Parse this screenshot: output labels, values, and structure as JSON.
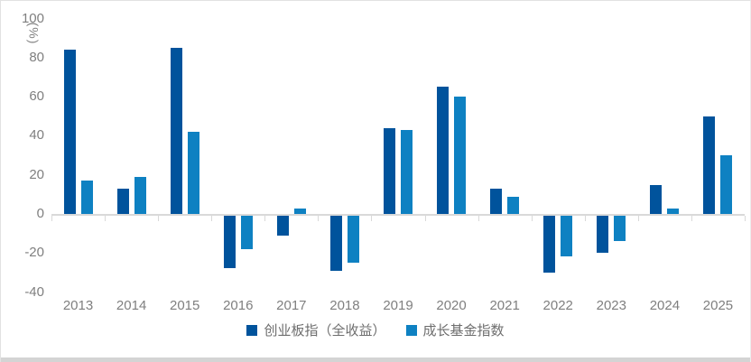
{
  "chart_data": {
    "type": "bar",
    "title": "",
    "unit_label": "(%)",
    "categories": [
      "2013",
      "2014",
      "2015",
      "2016",
      "2017",
      "2018",
      "2019",
      "2020",
      "2021",
      "2022",
      "2023",
      "2024",
      "2025"
    ],
    "series": [
      {
        "name": "创业板指（全收益）",
        "color": "#00539C",
        "values": [
          84,
          13,
          85,
          -27,
          -10,
          -28,
          44,
          65,
          13,
          -29,
          -19,
          15,
          50
        ]
      },
      {
        "name": "成长基金指数",
        "color": "#0E81C2",
        "values": [
          17,
          19,
          42,
          -17,
          3,
          -24,
          43,
          60,
          9,
          -21,
          -13,
          3,
          30
        ]
      }
    ],
    "ylim": [
      -40,
      100
    ],
    "ytick_interval": 20,
    "yticks": [
      100,
      80,
      60,
      40,
      20,
      0,
      -20,
      -40
    ],
    "grid": false,
    "legend_position": "bottom",
    "axis_color": "#d9d9d9",
    "tick_text_color": "#7f7f7f"
  }
}
